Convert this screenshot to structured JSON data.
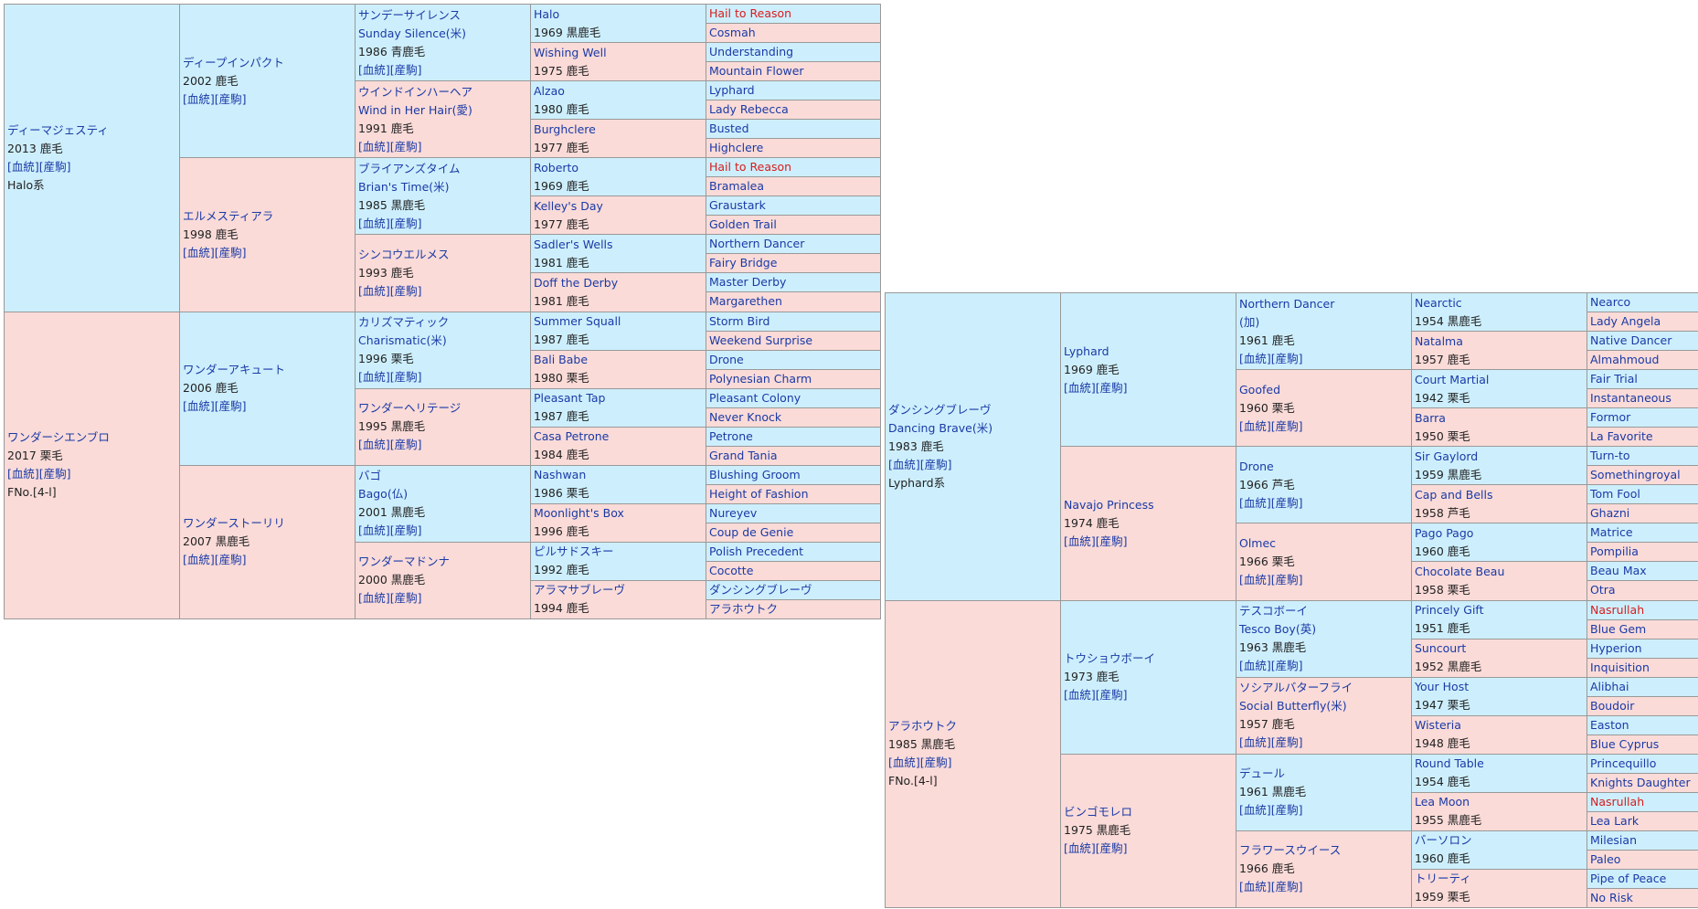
{
  "colors": {
    "male_bg": "#cdeffd",
    "female_bg": "#fadbd8",
    "link": "#1a3aa6",
    "inbreed_red": "#d81c1c"
  },
  "labels": {
    "bloodline": "[血統]",
    "race": "[産駒]"
  },
  "pedigree1": {
    "subject_sire": {
      "name": "ディーマジェスティ",
      "year_color": "2013 鹿毛",
      "lineage": "Halo系"
    },
    "subject_dam": {
      "name": "ワンダーシエンブロ",
      "year_color": "2017 栗毛",
      "family": "FNo.[4-l]"
    },
    "gen2": [
      {
        "name": "ディープインパクト",
        "year_color": "2002 鹿毛"
      },
      {
        "name": "エルメスティアラ",
        "year_color": "1998 鹿毛"
      },
      {
        "name": "ワンダーアキュート",
        "year_color": "2006 鹿毛"
      },
      {
        "name": "ワンダーストーリリ",
        "year_color": "2007 黒鹿毛"
      }
    ],
    "gen3": [
      {
        "name": "サンデーサイレンス",
        "alt": "Sunday Silence(米)",
        "year_color": "1986 青鹿毛"
      },
      {
        "name": "ウインドインハーヘア",
        "alt": "Wind in Her Hair(愛)",
        "year_color": "1991 鹿毛"
      },
      {
        "name": "ブライアンズタイム",
        "alt": "Brian's Time(米)",
        "year_color": "1985 黒鹿毛"
      },
      {
        "name": "シンコウエルメス",
        "alt": "",
        "year_color": "1993 鹿毛"
      },
      {
        "name": "カリズマティック",
        "alt": "Charismatic(米)",
        "year_color": "1996 栗毛"
      },
      {
        "name": "ワンダーヘリテージ",
        "alt": "",
        "year_color": "1995 黒鹿毛"
      },
      {
        "name": "バゴ",
        "alt": "Bago(仏)",
        "year_color": "2001 黒鹿毛"
      },
      {
        "name": "ワンダーマドンナ",
        "alt": "",
        "year_color": "2000 黒鹿毛"
      }
    ],
    "gen4": [
      {
        "name": "Halo",
        "year_color": "1969 黒鹿毛"
      },
      {
        "name": "Wishing Well",
        "year_color": "1975 鹿毛"
      },
      {
        "name": "Alzao",
        "year_color": "1980 鹿毛"
      },
      {
        "name": "Burghclere",
        "year_color": "1977 鹿毛"
      },
      {
        "name": "Roberto",
        "year_color": "1969 鹿毛"
      },
      {
        "name": "Kelley's Day",
        "year_color": "1977 鹿毛"
      },
      {
        "name": "Sadler's Wells",
        "year_color": "1981 鹿毛"
      },
      {
        "name": "Doff the Derby",
        "year_color": "1981 鹿毛"
      },
      {
        "name": "Summer Squall",
        "year_color": "1987 鹿毛"
      },
      {
        "name": "Bali Babe",
        "year_color": "1980 栗毛"
      },
      {
        "name": "Pleasant Tap",
        "year_color": "1987 鹿毛"
      },
      {
        "name": "Casa Petrone",
        "year_color": "1984 鹿毛"
      },
      {
        "name": "Nashwan",
        "year_color": "1986 栗毛"
      },
      {
        "name": "Moonlight's Box",
        "year_color": "1996 鹿毛"
      },
      {
        "name": "ピルサドスキー",
        "year_color": "1992 鹿毛"
      },
      {
        "name": "アラマサブレーヴ",
        "year_color": "1994 鹿毛"
      }
    ],
    "gen5": [
      "Hail to Reason",
      "Cosmah",
      "Understanding",
      "Mountain Flower",
      "Lyphard",
      "Lady Rebecca",
      "Busted",
      "Highclere",
      "Hail to Reason",
      "Bramalea",
      "Graustark",
      "Golden Trail",
      "Northern Dancer",
      "Fairy Bridge",
      "Master Derby",
      "Margarethen",
      "Storm Bird",
      "Weekend Surprise",
      "Drone",
      "Polynesian Charm",
      "Pleasant Colony",
      "Never Knock",
      "Petrone",
      "Grand Tania",
      "Blushing Groom",
      "Height of Fashion",
      "Nureyev",
      "Coup de Genie",
      "Polish Precedent",
      "Cocotte",
      "ダンシングブレーヴ",
      "アラホウトク"
    ]
  },
  "pedigree2": {
    "subject_sire": {
      "name": "ダンシングブレーヴ",
      "alt": "Dancing Brave(米)",
      "year_color": "1983 鹿毛",
      "lineage": "Lyphard系"
    },
    "subject_dam": {
      "name": "アラホウトク",
      "year_color": "1985 黒鹿毛",
      "family": "FNo.[4-l]"
    },
    "gen2": [
      {
        "name": "Lyphard",
        "year_color": "1969 鹿毛"
      },
      {
        "name": "Navajo Princess",
        "year_color": "1974 鹿毛"
      },
      {
        "name": "トウショウボーイ",
        "year_color": "1973 鹿毛"
      },
      {
        "name": "ビンゴモレロ",
        "year_color": "1975 黒鹿毛"
      }
    ],
    "gen3": [
      {
        "name": "Northern Dancer",
        "alt": "(加)",
        "year_color": "1961 鹿毛"
      },
      {
        "name": "Goofed",
        "alt": "",
        "year_color": "1960 栗毛"
      },
      {
        "name": "Drone",
        "alt": "",
        "year_color": "1966 芦毛"
      },
      {
        "name": "Olmec",
        "alt": "",
        "year_color": "1966 栗毛"
      },
      {
        "name": "テスコボーイ",
        "alt": "Tesco Boy(英)",
        "year_color": "1963 黒鹿毛"
      },
      {
        "name": "ソシアルバターフライ",
        "alt": "Social Butterfly(米)",
        "year_color": "1957 鹿毛"
      },
      {
        "name": "デュール",
        "alt": "",
        "year_color": "1961 黒鹿毛"
      },
      {
        "name": "フラワースウイース",
        "alt": "",
        "year_color": "1966 鹿毛"
      }
    ],
    "gen4": [
      {
        "name": "Nearctic",
        "year_color": "1954 黒鹿毛"
      },
      {
        "name": "Natalma",
        "year_color": "1957 鹿毛"
      },
      {
        "name": "Court Martial",
        "year_color": "1942 栗毛"
      },
      {
        "name": "Barra",
        "year_color": "1950 栗毛"
      },
      {
        "name": "Sir Gaylord",
        "year_color": "1959 黒鹿毛"
      },
      {
        "name": "Cap and Bells",
        "year_color": "1958 芦毛"
      },
      {
        "name": "Pago Pago",
        "year_color": "1960 鹿毛"
      },
      {
        "name": "Chocolate Beau",
        "year_color": "1958 栗毛"
      },
      {
        "name": "Princely Gift",
        "year_color": "1951 鹿毛"
      },
      {
        "name": "Suncourt",
        "year_color": "1952 黒鹿毛"
      },
      {
        "name": "Your Host",
        "year_color": "1947 栗毛"
      },
      {
        "name": "Wisteria",
        "year_color": "1948 鹿毛"
      },
      {
        "name": "Round Table",
        "year_color": "1954 鹿毛"
      },
      {
        "name": "Lea Moon",
        "year_color": "1955 黒鹿毛"
      },
      {
        "name": "バーソロン",
        "year_color": "1960 鹿毛"
      },
      {
        "name": "トリーティ",
        "year_color": "1959 栗毛"
      }
    ],
    "gen5": [
      "Nearco",
      "Lady Angela",
      "Native Dancer",
      "Almahmoud",
      "Fair Trial",
      "Instantaneous",
      "Formor",
      "La Favorite",
      "Turn-to",
      "Somethingroyal",
      "Tom Fool",
      "Ghazni",
      "Matrice",
      "Pompilia",
      "Beau Max",
      "Otra",
      "Nasrullah",
      "Blue Gem",
      "Hyperion",
      "Inquisition",
      "Alibhai",
      "Boudoir",
      "Easton",
      "Blue Cyprus",
      "Princequillo",
      "Knights Daughter",
      "Nasrullah",
      "Lea Lark",
      "Milesian",
      "Paleo",
      "Pipe of Peace",
      "No Risk"
    ]
  }
}
